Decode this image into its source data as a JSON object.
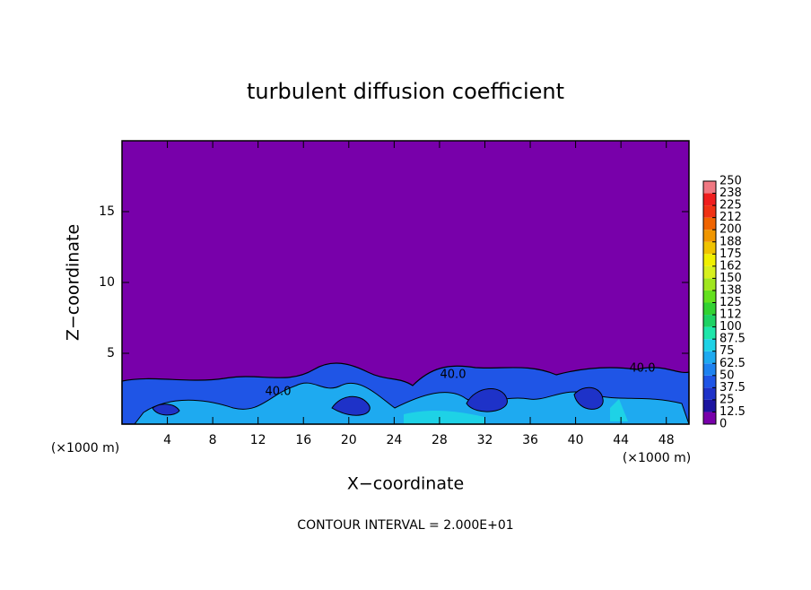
{
  "chart_data": {
    "type": "contour",
    "title": "turbulent diffusion coefficient",
    "x_label": "X−coordinate",
    "y_label": "Z−coordinate",
    "x_unit_left": "(×1000 m)",
    "x_unit_right": "(×1000 m)",
    "footer": "CONTOUR INTERVAL = 2.000E+01",
    "xlim": [
      0,
      50
    ],
    "ylim": [
      0,
      20
    ],
    "xticks": [
      4,
      8,
      12,
      16,
      20,
      24,
      28,
      32,
      36,
      40,
      44,
      48
    ],
    "yticks": [
      5,
      10,
      15
    ],
    "contour_labels": [
      "40.0",
      "40.0",
      "40.0"
    ],
    "colorbar": {
      "levels": [
        0,
        12.5,
        25,
        37.5,
        50,
        62.5,
        75,
        87.5,
        100,
        {
          "value": 112.5,
          "label": "112"
        },
        125,
        {
          "value": 137.5,
          "label": "138"
        },
        150,
        {
          "value": 162.5,
          "label": "162"
        },
        175,
        {
          "value": 187.5,
          "label": "188"
        },
        200,
        {
          "value": 212.5,
          "label": "212"
        },
        225,
        {
          "value": 237.5,
          "label": "238"
        },
        250
      ],
      "colors": [
        "#7800aa",
        "#1c14a0",
        "#1e32c8",
        "#1f55e6",
        "#1e82f0",
        "#1eaaf0",
        "#1ed2e6",
        "#1ee6aa",
        "#1ed264",
        "#32d232",
        "#64e11e",
        "#a0e61e",
        "#d7f01e",
        "#f0f000",
        "#f0c300",
        "#f09600",
        "#f06400",
        "#f03214",
        "#f01e1e",
        "#f07882"
      ]
    }
  }
}
